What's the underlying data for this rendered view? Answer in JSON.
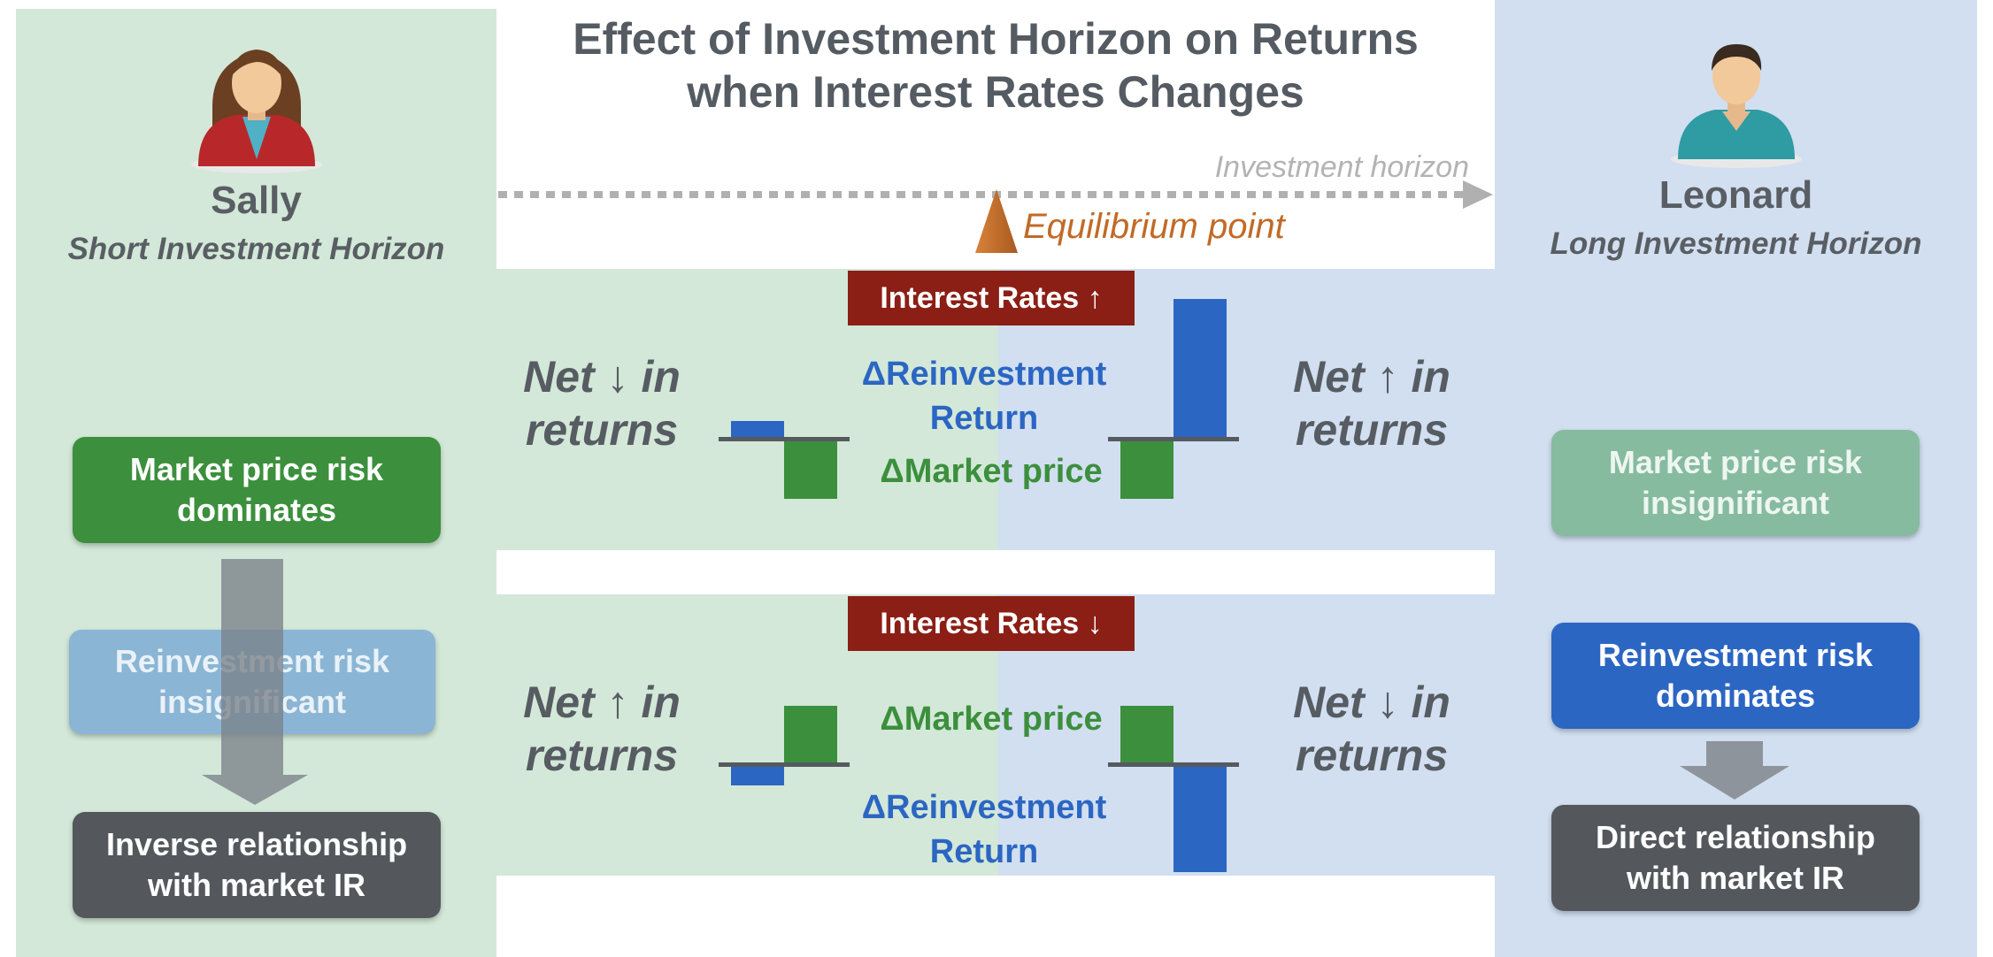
{
  "title_line1": "Effect of Investment Horizon on Returns",
  "title_line2": "when Interest Rates Changes",
  "left_investor": {
    "name": "Sally",
    "horizon": "Short Investment Horizon",
    "box1_line1": "Market price risk",
    "box1_line2": "dominates",
    "box2_line1": "Reinvestment  risk",
    "box2_line2": "insignificant",
    "box3_line1": "Inverse relationship",
    "box3_line2": "with market IR"
  },
  "right_investor": {
    "name": "Leonard",
    "horizon": "Long Investment Horizon",
    "box1_line1": "Market price risk",
    "box1_line2": "insignificant",
    "box2_line1": "Reinvestment risk",
    "box2_line2": "dominates",
    "box3_line1": "Direct relationship",
    "box3_line2": "with market IR"
  },
  "horizon_label": "Investment horizon",
  "equilibrium_label": "Equilibrium point",
  "top_scenario": {
    "banner": "Interest Rates ↑",
    "left_net_line1": "Net ↓ in",
    "left_net_line2": "returns",
    "right_net_line1": "Net ↑ in",
    "right_net_line2": "returns",
    "reinvest_line1": "ΔReinvestment",
    "reinvest_line2": "Return",
    "market": "ΔMarket price"
  },
  "bottom_scenario": {
    "banner": "Interest Rates ↓",
    "left_net_line1": "Net ↑ in",
    "left_net_line2": "returns",
    "right_net_line1": "Net ↓ in",
    "right_net_line2": "returns",
    "reinvest_line1": "ΔReinvestment",
    "reinvest_line2": "Return",
    "market": "ΔMarket price"
  },
  "colors": {
    "left_panel": "#d3e8d8",
    "right_panel": "#d1dff0",
    "market_green": "#3c8f3d",
    "reinvest_blue": "#2c66c3",
    "banner_red": "#8b1f15",
    "equilibrium_orange": "#c16a27"
  },
  "icons": {
    "left_avatar": "woman-avatar-icon",
    "right_avatar": "man-avatar-icon",
    "arrow": "down-arrow-icon",
    "equilibrium": "triangle-marker-icon"
  }
}
